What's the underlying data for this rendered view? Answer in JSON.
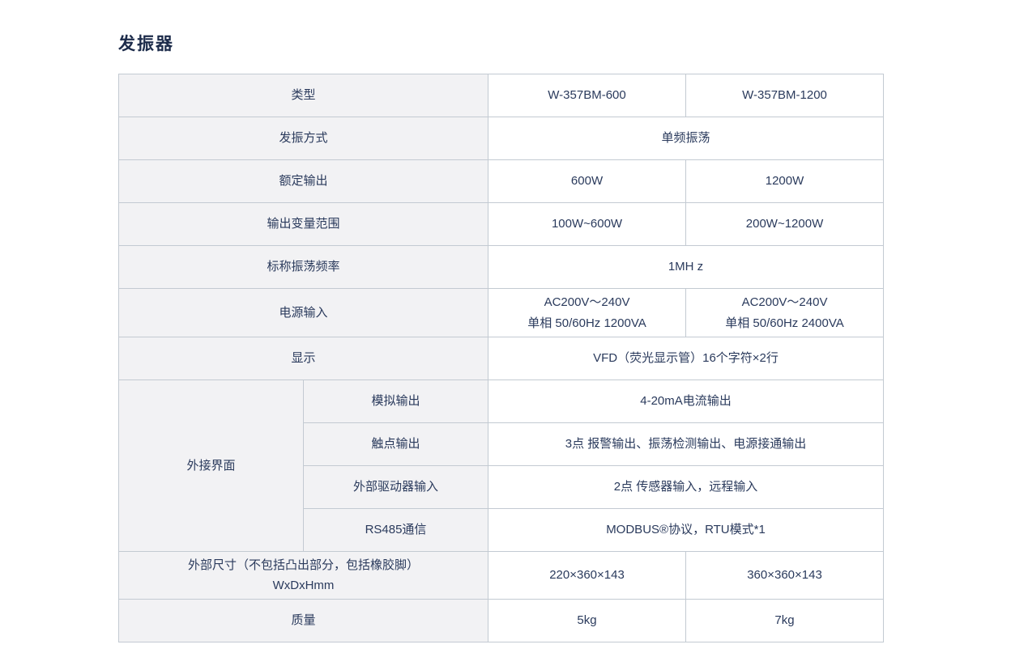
{
  "page": {
    "title": "发振器"
  },
  "colors": {
    "text": "#2a3a5c",
    "label_bg": "#f2f2f4",
    "value_bg": "#ffffff",
    "border": "#c3cad2"
  },
  "table": {
    "rows": {
      "type": {
        "label": "类型",
        "v1": "W-357BM-600",
        "v2": "W-357BM-1200"
      },
      "osc_method": {
        "label": "发振方式",
        "value": "单频振荡"
      },
      "rated_output": {
        "label": "额定输出",
        "v1": "600W",
        "v2": "1200W"
      },
      "output_range": {
        "label": "输出变量范围",
        "v1": "100W~600W",
        "v2": "200W~1200W"
      },
      "nominal_freq": {
        "label": "标称振荡频率",
        "value": "1MH z"
      },
      "power_input": {
        "label": "电源输入",
        "v1_line1": "AC200V～240V",
        "v1_line2": "单相 50/60Hz 1200VA",
        "v2_line1": "AC200V～240V",
        "v2_line2": "单相 50/60Hz 2400VA"
      },
      "display": {
        "label": "显示",
        "value": "VFD（荧光显示管）16个字符×2行"
      },
      "external_interface": {
        "label": "外接界面",
        "analog_output": {
          "label": "模拟输出",
          "value": "4-20mA电流输出"
        },
        "contact_output": {
          "label": "触点输出",
          "value": "3点 报警输出、振荡检测输出、电源接通输出"
        },
        "external_driver_input": {
          "label": "外部驱动器输入",
          "value": "2点 传感器输入，远程输入"
        },
        "rs485": {
          "label": "RS485通信",
          "value": "MODBUS®协议，RTU模式*1"
        }
      },
      "dimensions": {
        "label_line1": "外部尺寸（不包括凸出部分，包括橡胶脚）",
        "label_line2": "WxDxHmm",
        "v1": "220×360×143",
        "v2": "360×360×143"
      },
      "mass": {
        "label": "质量",
        "v1": "5kg",
        "v2": "7kg"
      }
    }
  }
}
